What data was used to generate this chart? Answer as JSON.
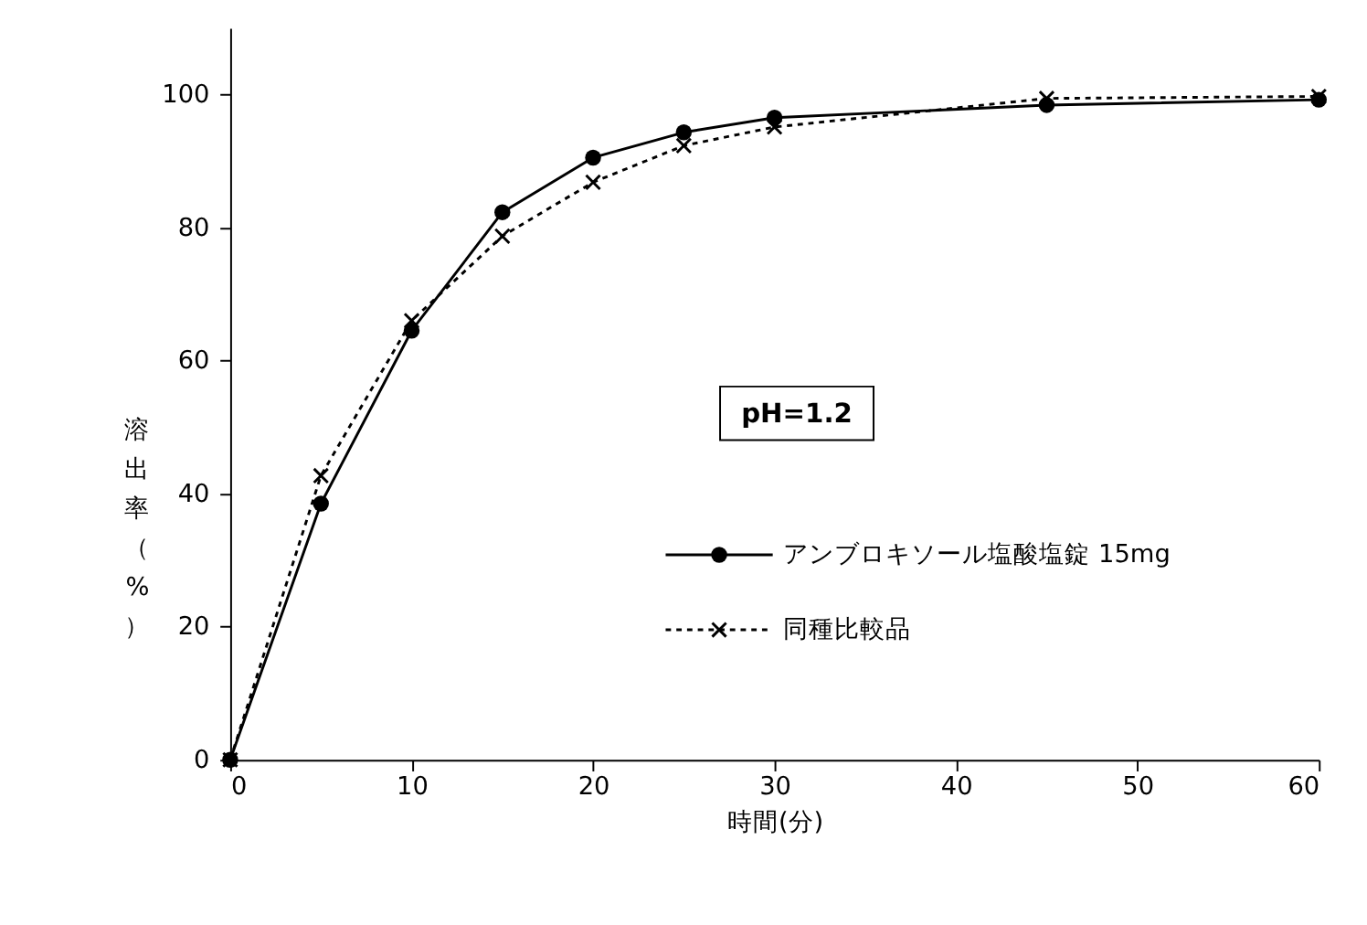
{
  "chart_data": {
    "type": "line",
    "xlabel": "時間(分)",
    "ylabel": "溶出率（%）",
    "x": [
      0,
      5,
      10,
      15,
      20,
      25,
      30,
      45,
      60
    ],
    "series": [
      {
        "name": "アンブロキソール塩酸塩錠 15mg",
        "color": "#000000",
        "marker": "circle",
        "line_style": "solid",
        "values": [
          0,
          38.5,
          64.5,
          82.3,
          90.5,
          94.3,
          96.5,
          98.4,
          99.2
        ]
      },
      {
        "name": "同種比較品",
        "color": "#000000",
        "marker": "cross",
        "line_style": "dotted",
        "values": [
          0,
          42.7,
          66.0,
          78.7,
          86.8,
          92.3,
          95.1,
          99.4,
          99.7
        ]
      }
    ],
    "xlim": [
      0,
      60
    ],
    "xticks": [
      0,
      10,
      20,
      30,
      40,
      50,
      60
    ],
    "ylim": [
      0,
      110
    ],
    "yticks": [
      0,
      20,
      40,
      60,
      80,
      100
    ],
    "grid": false,
    "legend": "right",
    "annotations": [
      "pH=1.2"
    ]
  }
}
